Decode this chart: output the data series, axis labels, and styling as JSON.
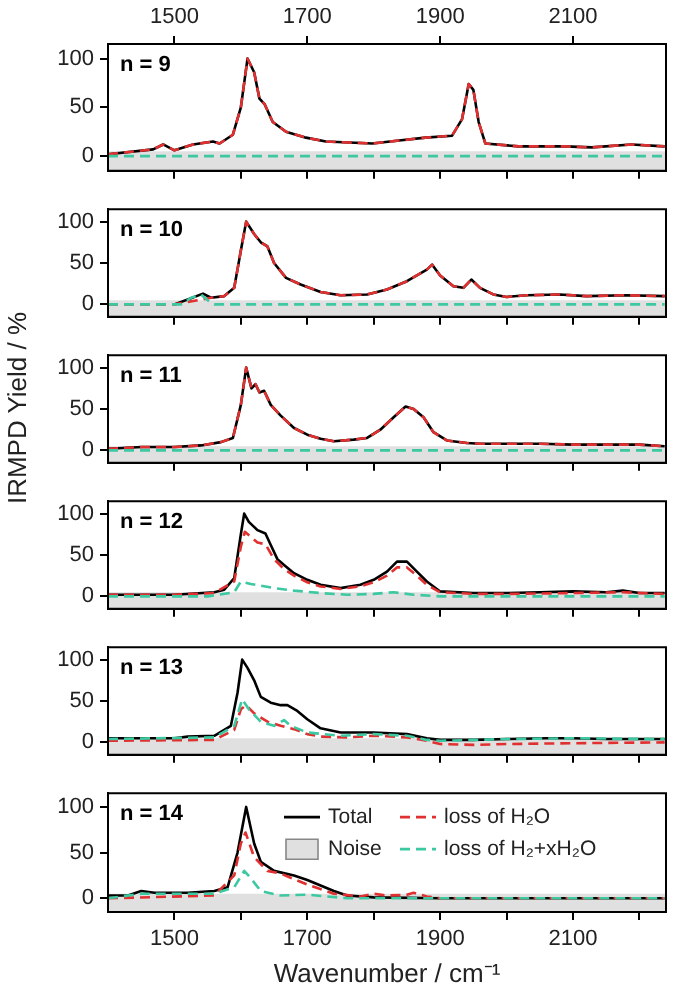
{
  "chart_data": [
    {
      "type": "line",
      "annotations": [
        "n = 9"
      ],
      "xlim": [
        1400,
        2240
      ],
      "ylim": [
        -15,
        115
      ],
      "x2lim": [
        1400,
        2240
      ],
      "x2ticks": [
        1500,
        1700,
        1900,
        2100
      ],
      "xticks": [
        {
          "value": 1500,
          "label": null
        },
        {
          "value": 1600,
          "label": null
        },
        {
          "value": 1700,
          "label": null
        },
        {
          "value": 1800,
          "label": null
        },
        {
          "value": 1900,
          "label": null
        },
        {
          "value": 2000,
          "label": null
        },
        {
          "value": 2100,
          "label": null
        },
        {
          "value": 2200,
          "label": null
        }
      ],
      "yticks": [
        0,
        50,
        100
      ],
      "tick_labels": "y",
      "grid": false,
      "legend": false,
      "marker": "none",
      "bands": [
        {
          "axis": "y",
          "from": -15,
          "to": 5,
          "color": "#e0e0e0"
        }
      ],
      "series": [
        {
          "color": "#000000",
          "line_style": "solid",
          "x": [
            1400,
            1468,
            1483,
            1500,
            1528,
            1558,
            1568,
            1588,
            1600,
            1610,
            1620,
            1628,
            1636,
            1648,
            1668,
            1698,
            1728,
            1798,
            1838,
            1878,
            1918,
            1933,
            1943,
            1950,
            1958,
            1968,
            2018,
            2088,
            2128,
            2188,
            2238
          ],
          "values": [
            2,
            7,
            12,
            6,
            12,
            15,
            13,
            22,
            50,
            100,
            86,
            59,
            53,
            35,
            25,
            19,
            15,
            13,
            16,
            19,
            21,
            38,
            74,
            68,
            35,
            13,
            10,
            10,
            9,
            12,
            10
          ]
        },
        {
          "color": "#e03030",
          "line_style": "dashed",
          "x": [
            1400,
            1468,
            1483,
            1500,
            1528,
            1558,
            1568,
            1588,
            1600,
            1610,
            1620,
            1628,
            1636,
            1648,
            1668,
            1698,
            1728,
            1798,
            1838,
            1878,
            1918,
            1933,
            1943,
            1950,
            1958,
            1968,
            2018,
            2088,
            2128,
            2188,
            2238
          ],
          "values": [
            2,
            7,
            12,
            6,
            12,
            15,
            13,
            22,
            50,
            100,
            86,
            59,
            53,
            35,
            25,
            19,
            15,
            13,
            16,
            19,
            21,
            38,
            74,
            68,
            35,
            13,
            10,
            10,
            9,
            12,
            10
          ]
        },
        {
          "color": "#3cc8a0",
          "line_style": "dashed",
          "x": [
            1400,
            2238
          ],
          "values": [
            0,
            0
          ]
        }
      ]
    },
    {
      "type": "line",
      "annotations": [
        "n = 10"
      ],
      "xlim": [
        1400,
        2240
      ],
      "ylim": [
        -15,
        115
      ],
      "xticks": [
        {
          "value": 1500,
          "label": null
        },
        {
          "value": 1600,
          "label": null
        },
        {
          "value": 1700,
          "label": null
        },
        {
          "value": 1800,
          "label": null
        },
        {
          "value": 1900,
          "label": null
        },
        {
          "value": 2000,
          "label": null
        },
        {
          "value": 2100,
          "label": null
        },
        {
          "value": 2200,
          "label": null
        }
      ],
      "yticks": [
        0,
        50,
        100
      ],
      "tick_labels": "y",
      "grid": false,
      "legend": false,
      "marker": "none",
      "bands": [
        {
          "axis": "y",
          "from": -15,
          "to": 5,
          "color": "#e0e0e0"
        }
      ],
      "series": [
        {
          "color": "#000000",
          "line_style": "solid",
          "x": [
            1500,
            1520,
            1543,
            1555,
            1575,
            1590,
            1600,
            1608,
            1620,
            1630,
            1640,
            1650,
            1668,
            1690,
            1720,
            1750,
            1790,
            1820,
            1850,
            1880,
            1888,
            1900,
            1920,
            1935,
            1947,
            1960,
            1980,
            2000,
            2030,
            2080,
            2120,
            2180,
            2238
          ],
          "values": [
            0,
            6,
            13,
            8,
            10,
            20,
            65,
            100,
            85,
            75,
            70,
            50,
            32,
            24,
            15,
            11,
            12,
            18,
            28,
            42,
            48,
            35,
            22,
            20,
            30,
            20,
            12,
            9,
            11,
            12,
            10,
            11,
            10
          ]
        },
        {
          "color": "#e03030",
          "line_style": "dashed",
          "x": [
            1400,
            1500,
            1520,
            1543,
            1555,
            1575,
            1590,
            1600,
            1608,
            1620,
            1630,
            1640,
            1650,
            1668,
            1690,
            1720,
            1750,
            1790,
            1820,
            1850,
            1880,
            1888,
            1900,
            1920,
            1935,
            1947,
            1960,
            1980,
            2000,
            2030,
            2080,
            2120,
            2180,
            2238
          ],
          "values": [
            0,
            0,
            3,
            6,
            8,
            10,
            20,
            65,
            100,
            85,
            75,
            70,
            50,
            32,
            24,
            15,
            11,
            12,
            18,
            28,
            42,
            48,
            35,
            22,
            20,
            30,
            20,
            12,
            9,
            11,
            12,
            10,
            11,
            10
          ]
        },
        {
          "color": "#3cc8a0",
          "line_style": "dashed",
          "x": [
            1400,
            1510,
            1525,
            1540,
            1550,
            1560,
            2238
          ],
          "values": [
            0,
            0,
            8,
            12,
            5,
            0,
            0
          ]
        }
      ]
    },
    {
      "type": "line",
      "ylabel": "IRMPD Yield / %",
      "annotations": [
        "n = 11"
      ],
      "xlim": [
        1400,
        2240
      ],
      "ylim": [
        -15,
        115
      ],
      "xticks": [
        {
          "value": 1500,
          "label": null
        },
        {
          "value": 1600,
          "label": null
        },
        {
          "value": 1700,
          "label": null
        },
        {
          "value": 1800,
          "label": null
        },
        {
          "value": 1900,
          "label": null
        },
        {
          "value": 2000,
          "label": null
        },
        {
          "value": 2100,
          "label": null
        },
        {
          "value": 2200,
          "label": null
        }
      ],
      "yticks": [
        0,
        50,
        100
      ],
      "tick_labels": "y",
      "grid": false,
      "legend": false,
      "marker": "none",
      "bands": [
        {
          "axis": "y",
          "from": -15,
          "to": 5,
          "color": "#e0e0e0"
        }
      ],
      "series": [
        {
          "color": "#000000",
          "line_style": "solid",
          "x": [
            1400,
            1450,
            1500,
            1540,
            1570,
            1588,
            1600,
            1608,
            1616,
            1622,
            1628,
            1635,
            1645,
            1660,
            1680,
            1700,
            1720,
            1740,
            1770,
            1790,
            1810,
            1830,
            1848,
            1860,
            1875,
            1890,
            1910,
            1940,
            1960,
            2000,
            2050,
            2100,
            2150,
            2200,
            2238
          ],
          "values": [
            2,
            4,
            4,
            6,
            10,
            15,
            55,
            100,
            75,
            80,
            70,
            72,
            55,
            42,
            27,
            19,
            14,
            11,
            13,
            15,
            25,
            40,
            53,
            50,
            40,
            22,
            12,
            9,
            8,
            8,
            8,
            7,
            7,
            7,
            5
          ]
        },
        {
          "color": "#e03030",
          "line_style": "dashed",
          "x": [
            1400,
            1450,
            1500,
            1540,
            1570,
            1588,
            1600,
            1608,
            1616,
            1622,
            1628,
            1635,
            1645,
            1660,
            1680,
            1700,
            1720,
            1740,
            1770,
            1790,
            1810,
            1830,
            1848,
            1860,
            1875,
            1890,
            1910,
            1940,
            1960,
            2000,
            2050,
            2100,
            2150,
            2200,
            2238
          ],
          "values": [
            2,
            4,
            4,
            6,
            10,
            15,
            55,
            100,
            75,
            80,
            70,
            72,
            55,
            42,
            27,
            19,
            14,
            11,
            13,
            15,
            25,
            40,
            53,
            50,
            40,
            22,
            12,
            9,
            8,
            8,
            8,
            7,
            7,
            7,
            5
          ]
        },
        {
          "color": "#3cc8a0",
          "line_style": "dashed",
          "x": [
            1400,
            2238
          ],
          "values": [
            0,
            0
          ]
        }
      ]
    },
    {
      "type": "line",
      "annotations": [
        "n = 12"
      ],
      "xlim": [
        1400,
        2240
      ],
      "ylim": [
        -15,
        115
      ],
      "xticks": [
        {
          "value": 1500,
          "label": null
        },
        {
          "value": 1600,
          "label": null
        },
        {
          "value": 1700,
          "label": null
        },
        {
          "value": 1800,
          "label": null
        },
        {
          "value": 1900,
          "label": null
        },
        {
          "value": 2000,
          "label": null
        },
        {
          "value": 2100,
          "label": null
        },
        {
          "value": 2200,
          "label": null
        }
      ],
      "yticks": [
        0,
        50,
        100
      ],
      "tick_labels": "y",
      "grid": false,
      "legend": false,
      "marker": "none",
      "bands": [
        {
          "axis": "y",
          "from": -15,
          "to": 5,
          "color": "#e0e0e0"
        }
      ],
      "series": [
        {
          "color": "#000000",
          "line_style": "solid",
          "x": [
            1400,
            1500,
            1560,
            1575,
            1590,
            1600,
            1605,
            1612,
            1625,
            1637,
            1645,
            1655,
            1665,
            1680,
            1700,
            1720,
            1750,
            1780,
            1800,
            1820,
            1835,
            1850,
            1865,
            1880,
            1900,
            1950,
            2000,
            2050,
            2100,
            2150,
            2175,
            2200,
            2238
          ],
          "values": [
            2,
            2,
            5,
            8,
            22,
            75,
            100,
            90,
            80,
            76,
            62,
            45,
            38,
            28,
            20,
            14,
            10,
            14,
            20,
            30,
            42,
            42,
            30,
            18,
            6,
            4,
            4,
            5,
            6,
            5,
            7,
            4,
            4
          ]
        },
        {
          "color": "#e03030",
          "line_style": "dashed",
          "x": [
            1400,
            1500,
            1560,
            1590,
            1600,
            1606,
            1615,
            1625,
            1637,
            1650,
            1665,
            1680,
            1700,
            1720,
            1750,
            1780,
            1800,
            1820,
            1835,
            1850,
            1865,
            1880,
            1900,
            1950,
            2000,
            2100,
            2175,
            2238
          ],
          "values": [
            2,
            2,
            4,
            18,
            60,
            78,
            72,
            65,
            63,
            45,
            33,
            25,
            17,
            12,
            9,
            12,
            17,
            25,
            35,
            35,
            25,
            14,
            5,
            3,
            3,
            4,
            5,
            3
          ]
        },
        {
          "color": "#3cc8a0",
          "line_style": "dashed",
          "x": [
            1400,
            1550,
            1590,
            1600,
            1615,
            1630,
            1650,
            1680,
            1720,
            1760,
            1800,
            1830,
            1860,
            1900,
            2238
          ],
          "values": [
            0,
            0,
            5,
            18,
            15,
            13,
            10,
            7,
            4,
            2,
            3,
            5,
            2,
            0,
            0
          ]
        }
      ]
    },
    {
      "type": "line",
      "annotations": [
        "n = 13"
      ],
      "xlim": [
        1400,
        2240
      ],
      "ylim": [
        -15,
        115
      ],
      "xticks": [
        {
          "value": 1500,
          "label": null
        },
        {
          "value": 1600,
          "label": null
        },
        {
          "value": 1700,
          "label": null
        },
        {
          "value": 1800,
          "label": null
        },
        {
          "value": 1900,
          "label": null
        },
        {
          "value": 2000,
          "label": null
        },
        {
          "value": 2100,
          "label": null
        },
        {
          "value": 2200,
          "label": null
        }
      ],
      "yticks": [
        0,
        50,
        100
      ],
      "tick_labels": "y",
      "grid": false,
      "legend": false,
      "marker": "none",
      "bands": [
        {
          "axis": "y",
          "from": -15,
          "to": 5,
          "color": "#e0e0e0"
        }
      ],
      "series": [
        {
          "color": "#000000",
          "line_style": "solid",
          "x": [
            1400,
            1500,
            1520,
            1560,
            1585,
            1595,
            1602,
            1610,
            1620,
            1630,
            1645,
            1660,
            1670,
            1685,
            1700,
            1720,
            1750,
            1800,
            1850,
            1880,
            1900,
            1950,
            2000,
            2060,
            2100,
            2150,
            2200,
            2238
          ],
          "values": [
            5,
            5,
            7,
            8,
            20,
            60,
            100,
            90,
            75,
            55,
            48,
            45,
            45,
            38,
            28,
            17,
            12,
            12,
            10,
            5,
            3,
            3,
            4,
            5,
            5,
            4,
            4,
            4
          ]
        },
        {
          "color": "#e03030",
          "line_style": "dashed",
          "x": [
            1400,
            1560,
            1590,
            1600,
            1608,
            1620,
            1640,
            1660,
            1680,
            1700,
            1720,
            1760,
            1800,
            1850,
            1880,
            1900,
            1950,
            2000,
            2100,
            2238
          ],
          "values": [
            2,
            3,
            15,
            40,
            45,
            35,
            25,
            20,
            16,
            10,
            7,
            6,
            8,
            6,
            2,
            -2,
            -3,
            -2,
            -1,
            0
          ]
        },
        {
          "color": "#3cc8a0",
          "line_style": "dashed",
          "x": [
            1400,
            1560,
            1590,
            1602,
            1612,
            1630,
            1650,
            1665,
            1675,
            1700,
            1750,
            1800,
            1850,
            1880,
            1900,
            1950,
            2000,
            2100,
            2238
          ],
          "values": [
            4,
            6,
            20,
            52,
            40,
            25,
            20,
            27,
            20,
            12,
            8,
            10,
            8,
            3,
            2,
            3,
            4,
            5,
            4
          ]
        }
      ]
    },
    {
      "type": "line",
      "annotations": [
        "n = 14"
      ],
      "xlabel": "Wavenumber / cm⁻¹",
      "xlim": [
        1400,
        2240
      ],
      "ylim": [
        -15,
        115
      ],
      "xticks": [
        1500,
        {
          "value": 1600,
          "label": null
        },
        1700,
        {
          "value": 1800,
          "label": null
        },
        1900,
        {
          "value": 2000,
          "label": null
        },
        2100,
        {
          "value": 2200,
          "label": null
        }
      ],
      "yticks": [
        0,
        50,
        100
      ],
      "grid": false,
      "legend": "top right",
      "marker": "none",
      "bands": [
        {
          "axis": "y",
          "from": -15,
          "to": 5,
          "color": "#e0e0e0",
          "label": "Noise"
        }
      ],
      "series": [
        {
          "name": "Total",
          "color": "#000000",
          "line_style": "solid",
          "x": [
            1400,
            1430,
            1450,
            1470,
            1520,
            1560,
            1580,
            1595,
            1608,
            1620,
            1630,
            1650,
            1680,
            1700,
            1720,
            1740,
            1760,
            1800,
            1900,
            2238
          ],
          "values": [
            3,
            3,
            8,
            6,
            6,
            8,
            12,
            50,
            100,
            60,
            40,
            30,
            25,
            20,
            14,
            8,
            3,
            1,
            0,
            0
          ]
        },
        {
          "name": "loss of H₂O",
          "color": "#e03030",
          "line_style": "dashed",
          "x": [
            1400,
            1560,
            1590,
            1600,
            1607,
            1620,
            1640,
            1660,
            1700,
            1740,
            1780,
            1800,
            1820,
            1850,
            1860,
            1880,
            1900,
            2238
          ],
          "values": [
            0,
            3,
            25,
            60,
            72,
            45,
            30,
            27,
            15,
            5,
            2,
            5,
            3,
            4,
            6,
            2,
            0,
            0
          ]
        },
        {
          "name": "loss of H₂+xH₂O",
          "color": "#3cc8a0",
          "line_style": "dashed",
          "x": [
            1400,
            1450,
            1500,
            1560,
            1590,
            1605,
            1615,
            1630,
            1660,
            1700,
            1760,
            2238
          ],
          "values": [
            0,
            5,
            5,
            5,
            12,
            30,
            22,
            8,
            3,
            4,
            0,
            0
          ]
        }
      ]
    }
  ]
}
